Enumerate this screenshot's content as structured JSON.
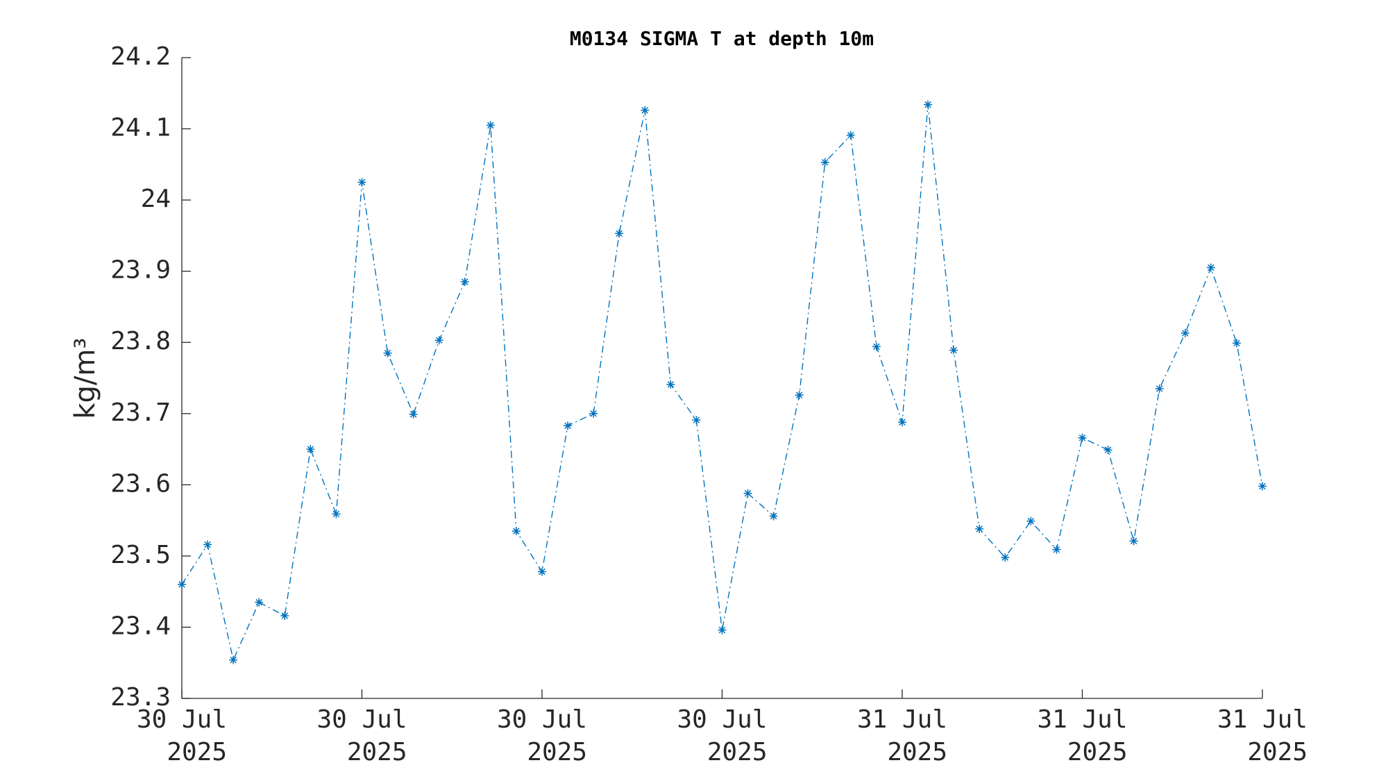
{
  "chart_data": {
    "type": "line",
    "title": "M0134 SIGMA T at depth 10m",
    "ylabel": "kg/m³",
    "series": [
      {
        "name": "SIGMA T",
        "color": "#0072bd",
        "marker": "asterisk",
        "linestyle": "dash-dot",
        "values": [
          23.46,
          23.516,
          23.354,
          23.435,
          23.416,
          23.65,
          23.559,
          24.025,
          23.785,
          23.699,
          23.803,
          23.885,
          24.105,
          23.535,
          23.478,
          23.683,
          23.7,
          23.953,
          24.126,
          23.741,
          23.691,
          23.396,
          23.588,
          23.556,
          23.726,
          24.053,
          24.091,
          23.794,
          23.688,
          24.134,
          23.789,
          23.538,
          23.498,
          23.549,
          23.509,
          23.666,
          23.649,
          23.521,
          23.735,
          23.813,
          23.905,
          23.799,
          23.598
        ]
      }
    ],
    "x": [
      0,
      1,
      2,
      3,
      4,
      5,
      6,
      7,
      8,
      9,
      10,
      11,
      12,
      13,
      14,
      15,
      16,
      17,
      18,
      19,
      20,
      21,
      22,
      23,
      24,
      25,
      26,
      27,
      28,
      29,
      30,
      31,
      32,
      33,
      34,
      35,
      36,
      37,
      38,
      39,
      40,
      41,
      42
    ],
    "xlim": [
      0,
      42
    ],
    "xticks": [
      {
        "value": 0,
        "label": [
          "30 Jul",
          "2025"
        ]
      },
      {
        "value": 7,
        "label": [
          "30 Jul",
          "2025"
        ]
      },
      {
        "value": 14,
        "label": [
          "30 Jul",
          "2025"
        ]
      },
      {
        "value": 21,
        "label": [
          "30 Jul",
          "2025"
        ]
      },
      {
        "value": 28,
        "label": [
          "31 Jul",
          "2025"
        ]
      },
      {
        "value": 35,
        "label": [
          "31 Jul",
          "2025"
        ]
      },
      {
        "value": 42,
        "label": [
          "31 Jul",
          "2025"
        ]
      }
    ],
    "ylim": [
      23.3,
      24.2
    ],
    "yticks": [
      23.3,
      23.4,
      23.5,
      23.6,
      23.7,
      23.8,
      23.9,
      24,
      24.1,
      24.2
    ],
    "grid": false
  }
}
